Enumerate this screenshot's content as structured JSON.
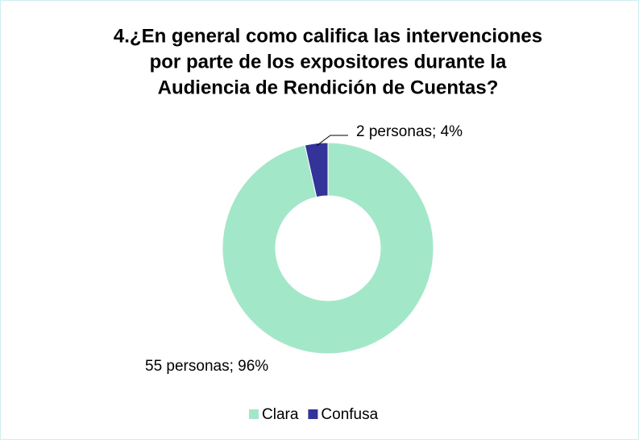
{
  "chart_data": {
    "type": "donut",
    "title": [
      "4.¿En general como califica las intervenciones",
      "por parte de los expositores durante la",
      "Audiencia de Rendición de Cuentas?"
    ],
    "categories": [
      "Clara",
      "Confusa"
    ],
    "values": [
      55,
      2
    ],
    "value_labels": [
      "55 personas; 96%",
      "2 personas; 4%"
    ],
    "colors": [
      "#a3e7c9",
      "#33339a"
    ],
    "legend": "bottom"
  }
}
